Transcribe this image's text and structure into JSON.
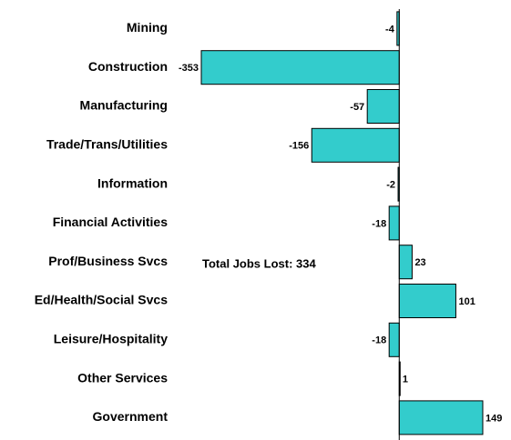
{
  "chart_data": {
    "type": "bar",
    "orientation": "horizontal",
    "categories": [
      "Mining",
      "Construction",
      "Manufacturing",
      "Trade/Trans/Utilities",
      "Information",
      "Financial Activities",
      "Prof/Business Svcs",
      "Ed/Health/Social Svcs",
      "Leisure/Hospitality",
      "Other Services",
      "Government"
    ],
    "values": [
      -4,
      -353,
      -57,
      -156,
      -2,
      -18,
      23,
      101,
      -18,
      1,
      149
    ],
    "color": "#33cccc",
    "annotations": [
      "Total Jobs Lost: 334"
    ]
  }
}
